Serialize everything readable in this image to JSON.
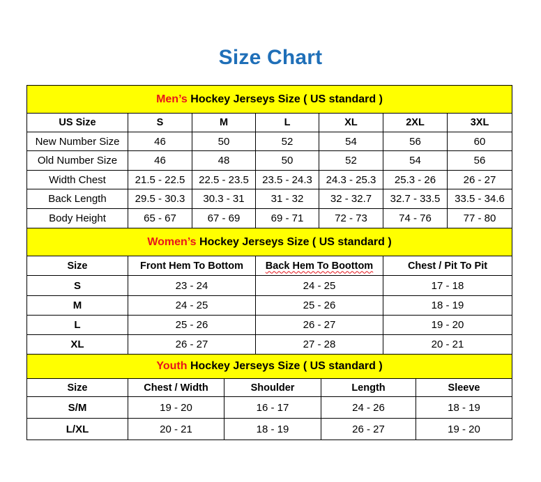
{
  "title": "Size Chart",
  "colors": {
    "title": "#1f6fb8",
    "header_bg": "#ffff00",
    "accent_red": "#e8161b"
  },
  "men": {
    "heading_accent": "Men’s",
    "heading_rest": " Hockey Jerseys Size ( US standard )",
    "columns": [
      "US Size",
      "S",
      "M",
      "L",
      "XL",
      "2XL",
      "3XL"
    ],
    "rows": [
      [
        "New Number Size",
        "46",
        "50",
        "52",
        "54",
        "56",
        "60"
      ],
      [
        "Old Number Size",
        "46",
        "48",
        "50",
        "52",
        "54",
        "56"
      ],
      [
        "Width Chest",
        "21.5 - 22.5",
        "22.5 - 23.5",
        "23.5 - 24.3",
        "24.3 - 25.3",
        "25.3 - 26",
        "26 - 27"
      ],
      [
        "Back Length",
        "29.5 - 30.3",
        "30.3 - 31",
        "31 - 32",
        "32 - 32.7",
        "32.7 - 33.5",
        "33.5 - 34.6"
      ],
      [
        "Body Height",
        "65 - 67",
        "67 - 69",
        "69 - 71",
        "72 - 73",
        "74 - 76",
        "77 - 80"
      ]
    ]
  },
  "women": {
    "heading_accent": "Women’s",
    "heading_rest": " Hockey Jerseys Size ( US standard )",
    "columns": [
      "Size",
      "Front Hem To Bottom",
      "Back Hem To Boottom",
      "Chest / Pit To Pit"
    ],
    "rows": [
      [
        "S",
        "23 - 24",
        "24 - 25",
        "17 - 18"
      ],
      [
        "M",
        "24 - 25",
        "25 - 26",
        "18 - 19"
      ],
      [
        "L",
        "25 - 26",
        "26 - 27",
        "19 - 20"
      ],
      [
        "XL",
        "26 - 27",
        "27 - 28",
        "20 - 21"
      ]
    ]
  },
  "youth": {
    "heading_accent": "Youth",
    "heading_rest": " Hockey Jerseys Size ( US standard )",
    "columns": [
      "Size",
      "Chest / Width",
      "Shoulder",
      "Length",
      "Sleeve"
    ],
    "rows": [
      [
        "S/M",
        "19 - 20",
        "16 - 17",
        "24 - 26",
        "18 - 19"
      ],
      [
        "L/XL",
        "20 - 21",
        "18 - 19",
        "26 - 27",
        "19 - 20"
      ]
    ]
  }
}
